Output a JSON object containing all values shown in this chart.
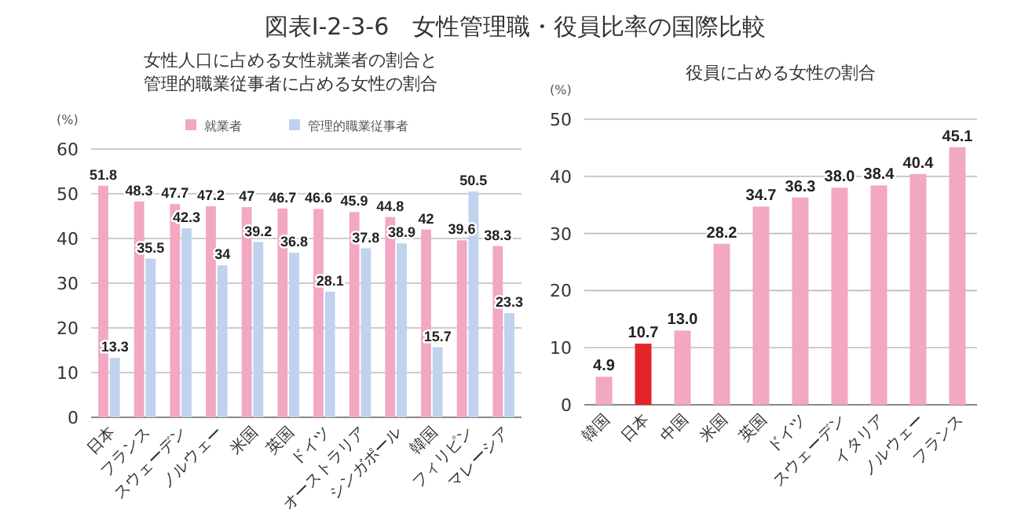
{
  "chart_data": [
    {
      "type": "bar",
      "title": "図表Ⅰ-2-3-6　女性管理職・役員比率の国際比較",
      "subtitle": "女性人口に占める女性就業者の割合と管理的職業従事者に占める女性の割合",
      "ylabel": "(%)",
      "categories": [
        "日本",
        "フランス",
        "スウェーデン",
        "ノルウェー",
        "米国",
        "英国",
        "ドイツ",
        "オーストラリア",
        "シンガポール",
        "韓国",
        "フィリピン",
        "マレーシア"
      ],
      "series": [
        {
          "name": "就業者",
          "color": "#f2a7c3",
          "values": [
            51.8,
            48.3,
            47.7,
            47.2,
            47,
            46.7,
            46.6,
            45.9,
            44.8,
            42,
            39.6,
            38.3
          ]
        },
        {
          "name": "管理的職業従事者",
          "color": "#bfd2ee",
          "values": [
            13.3,
            35.5,
            42.3,
            34,
            39.2,
            36.8,
            28.1,
            37.8,
            38.9,
            15.7,
            50.5,
            23.3
          ]
        }
      ],
      "ylim": [
        0,
        60
      ],
      "yticks": [
        0,
        10,
        20,
        30,
        40,
        50,
        60
      ],
      "grid": "y",
      "legend": "top",
      "data_labels": true
    },
    {
      "type": "bar",
      "title": "役員に占める女性の割合",
      "ylabel": "(%)",
      "categories": [
        "韓国",
        "日本",
        "中国",
        "米国",
        "英国",
        "ドイツ",
        "スウェーデン",
        "イタリア",
        "ノルウェー",
        "フランス"
      ],
      "values": [
        4.9,
        10.7,
        13.0,
        28.2,
        34.7,
        36.3,
        38.0,
        38.4,
        40.4,
        45.1
      ],
      "value_labels": [
        "4.9",
        "10.7",
        "13.0",
        "28.2",
        "34.7",
        "36.3",
        "38.0",
        "38.4",
        "40.4",
        "45.1"
      ],
      "colors": [
        "#f2a7c3",
        "#e3242b",
        "#f2a7c3",
        "#f2a7c3",
        "#f2a7c3",
        "#f2a7c3",
        "#f2a7c3",
        "#f2a7c3",
        "#f2a7c3",
        "#f2a7c3"
      ],
      "ylim": [
        0,
        50
      ],
      "yticks": [
        0,
        10,
        20,
        30,
        40,
        50
      ],
      "grid": "y"
    }
  ]
}
